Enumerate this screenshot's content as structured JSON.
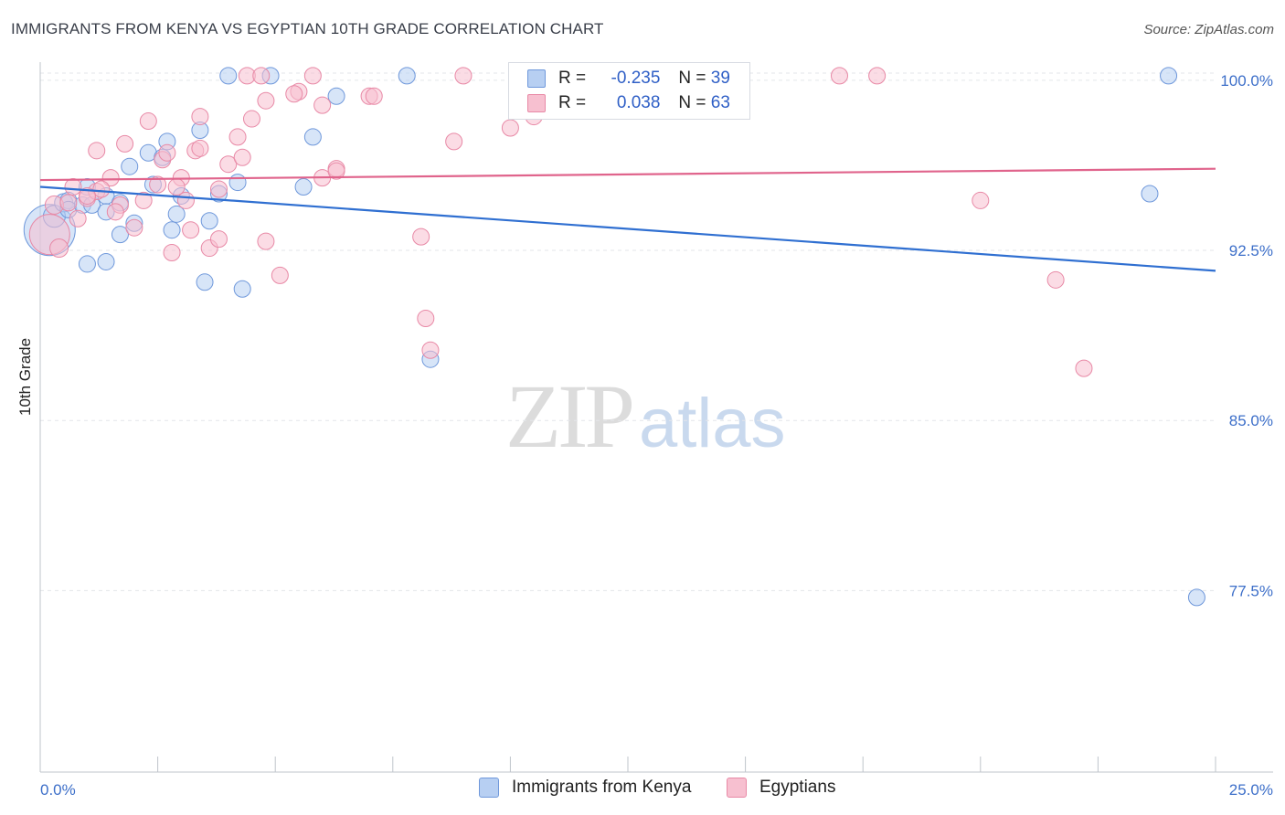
{
  "title": "IMMIGRANTS FROM KENYA VS EGYPTIAN 10TH GRADE CORRELATION CHART",
  "source": "Source: ZipAtlas.com",
  "watermark": {
    "zip": "ZIP",
    "atlas": "atlas"
  },
  "legend": {
    "rows": [
      {
        "r_label": "R =",
        "r_value": "-0.235",
        "n_label": "N =",
        "n_value": "39",
        "color": "#b7cff2",
        "stroke": "#6f98db"
      },
      {
        "r_label": "R =",
        "r_value": "0.038",
        "n_label": "N =",
        "n_value": "63",
        "color": "#f7c0d0",
        "stroke": "#e889a6"
      }
    ]
  },
  "bottom_legend": [
    {
      "label": "Immigrants from Kenya",
      "color": "#b7cff2",
      "stroke": "#6f98db"
    },
    {
      "label": "Egyptians",
      "color": "#f7c0d0",
      "stroke": "#e889a6"
    }
  ],
  "chart_data": {
    "type": "scatter",
    "title": "IMMIGRANTS FROM KENYA VS EGYPTIAN 10TH GRADE CORRELATION CHART",
    "xlabel": "",
    "ylabel": "10th Grade",
    "xlim": [
      0,
      25
    ],
    "ylim": [
      69.5,
      100.8
    ],
    "x_tick_labels": [
      "0.0%",
      "25.0%"
    ],
    "y_ticks": [
      77.5,
      85.0,
      92.5,
      100.0
    ],
    "y_tick_labels": [
      "77.5%",
      "85.0%",
      "92.5%",
      "100.0%"
    ],
    "grid": true,
    "legend_position": "top-center",
    "series": [
      {
        "name": "Immigrants from Kenya",
        "color": "#6f98db",
        "fill": "#b7cff2",
        "line_color": "#2f6fd1",
        "trend": {
          "x": [
            0,
            25
          ],
          "y": [
            95.3,
            91.6
          ]
        },
        "points": [
          [
            0.2,
            93.4,
            28
          ],
          [
            0.3,
            94.0,
            12
          ],
          [
            0.5,
            94.6,
            10
          ],
          [
            0.6,
            94.7,
            9
          ],
          [
            0.6,
            94.3,
            9
          ],
          [
            1.0,
            95.3,
            9
          ],
          [
            0.9,
            94.5,
            9
          ],
          [
            1.1,
            94.5,
            9
          ],
          [
            1.4,
            94.9,
            9
          ],
          [
            1.4,
            94.2,
            9
          ],
          [
            1.7,
            94.6,
            9
          ],
          [
            1.0,
            91.9,
            9
          ],
          [
            1.4,
            92.0,
            9
          ],
          [
            1.7,
            93.2,
            9
          ],
          [
            1.9,
            96.2,
            9
          ],
          [
            2.3,
            96.8,
            9
          ],
          [
            2.4,
            95.4,
            9
          ],
          [
            2.6,
            96.6,
            9
          ],
          [
            2.7,
            97.3,
            9
          ],
          [
            2.8,
            93.4,
            9
          ],
          [
            2.9,
            94.1,
            9
          ],
          [
            3.0,
            94.9,
            9
          ],
          [
            3.4,
            97.8,
            9
          ],
          [
            3.5,
            91.1,
            9
          ],
          [
            3.8,
            95.0,
            9
          ],
          [
            4.0,
            100.2,
            9
          ],
          [
            4.2,
            95.5,
            9
          ],
          [
            4.3,
            90.8,
            9
          ],
          [
            4.9,
            100.2,
            9
          ],
          [
            5.6,
            95.3,
            9
          ],
          [
            5.8,
            97.5,
            9
          ],
          [
            6.3,
            99.3,
            9
          ],
          [
            7.8,
            100.2,
            9
          ],
          [
            8.3,
            87.7,
            9
          ],
          [
            24.0,
            100.2,
            9
          ],
          [
            23.6,
            95.0,
            9
          ],
          [
            24.6,
            77.2,
            9
          ],
          [
            3.6,
            93.8,
            9
          ],
          [
            2.0,
            93.7,
            9
          ]
        ]
      },
      {
        "name": "Egyptians",
        "color": "#e889a6",
        "fill": "#f7c0d0",
        "line_color": "#e0648c",
        "trend": {
          "x": [
            0,
            25
          ],
          "y": [
            95.6,
            96.1
          ]
        },
        "points": [
          [
            0.2,
            93.2,
            22
          ],
          [
            0.3,
            94.5,
            10
          ],
          [
            0.4,
            92.6,
            10
          ],
          [
            0.6,
            94.6,
            9
          ],
          [
            0.7,
            95.3,
            9
          ],
          [
            0.8,
            93.9,
            9
          ],
          [
            1.0,
            94.8,
            9
          ],
          [
            1.2,
            95.1,
            9
          ],
          [
            1.2,
            96.9,
            9
          ],
          [
            1.5,
            95.7,
            9
          ],
          [
            1.7,
            94.5,
            9
          ],
          [
            1.8,
            97.2,
            9
          ],
          [
            2.0,
            93.5,
            9
          ],
          [
            2.2,
            94.7,
            9
          ],
          [
            2.3,
            98.2,
            9
          ],
          [
            2.5,
            95.4,
            9
          ],
          [
            2.6,
            96.5,
            9
          ],
          [
            2.7,
            96.8,
            9
          ],
          [
            2.8,
            92.4,
            9
          ],
          [
            3.0,
            95.7,
            9
          ],
          [
            3.1,
            94.7,
            9
          ],
          [
            3.2,
            93.4,
            9
          ],
          [
            3.3,
            96.9,
            9
          ],
          [
            3.4,
            98.4,
            9
          ],
          [
            3.6,
            92.6,
            9
          ],
          [
            3.8,
            95.2,
            9
          ],
          [
            3.8,
            93.0,
            9
          ],
          [
            4.0,
            96.3,
            9
          ],
          [
            4.2,
            97.5,
            9
          ],
          [
            4.3,
            96.6,
            9
          ],
          [
            4.4,
            100.2,
            9
          ],
          [
            4.5,
            98.3,
            9
          ],
          [
            4.7,
            100.2,
            9
          ],
          [
            4.8,
            92.9,
            9
          ],
          [
            4.8,
            99.1,
            9
          ],
          [
            5.1,
            91.4,
            9
          ],
          [
            5.5,
            99.5,
            9
          ],
          [
            5.8,
            100.2,
            9
          ],
          [
            6.0,
            98.9,
            9
          ],
          [
            6.0,
            95.7,
            9
          ],
          [
            6.3,
            96.1,
            9
          ],
          [
            7.0,
            99.3,
            9
          ],
          [
            8.1,
            93.1,
            9
          ],
          [
            8.2,
            89.5,
            9
          ],
          [
            8.3,
            88.1,
            9
          ],
          [
            8.8,
            97.3,
            9
          ],
          [
            9.0,
            100.2,
            9
          ],
          [
            10.0,
            97.9,
            9
          ],
          [
            10.5,
            98.4,
            9
          ],
          [
            11.3,
            100.0,
            9
          ],
          [
            17.0,
            100.2,
            9
          ],
          [
            17.8,
            100.2,
            9
          ],
          [
            20.0,
            94.7,
            9
          ],
          [
            21.6,
            91.2,
            9
          ],
          [
            22.2,
            87.3,
            9
          ],
          [
            1.3,
            95.2,
            9
          ],
          [
            1.6,
            94.2,
            9
          ],
          [
            2.9,
            95.3,
            9
          ],
          [
            6.3,
            96.0,
            9
          ],
          [
            7.1,
            99.3,
            9
          ],
          [
            3.4,
            97.0,
            9
          ],
          [
            5.4,
            99.4,
            9
          ],
          [
            1.0,
            94.9,
            9
          ]
        ]
      }
    ]
  }
}
